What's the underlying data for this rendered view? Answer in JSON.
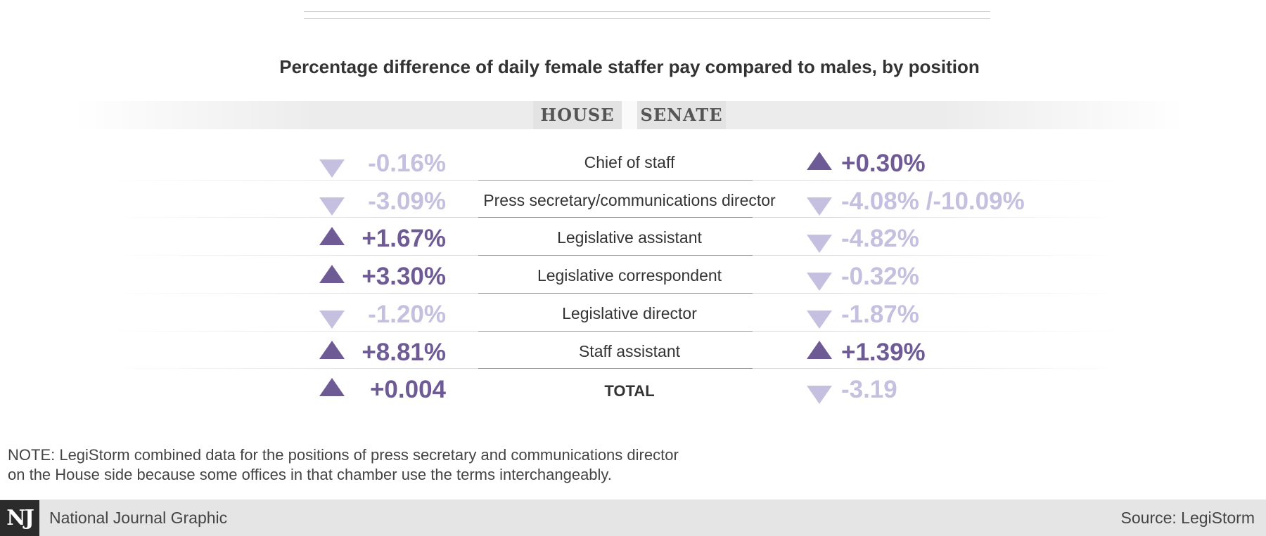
{
  "chart_data": {
    "type": "table",
    "title": "Percentage difference of daily female staffer pay compared to males, by position",
    "tabs": [
      "HOUSE",
      "SENATE"
    ],
    "rows": [
      {
        "position": "Chief of staff",
        "house": {
          "text": "-0.16%",
          "value": -0.16,
          "direction": "down"
        },
        "senate": {
          "text": "+0.30%",
          "value": 0.3,
          "direction": "up"
        }
      },
      {
        "position": "Press secretary/communications director",
        "house": {
          "text": "-3.09%",
          "value": -3.09,
          "direction": "down"
        },
        "senate": {
          "text": "-4.08% /-10.09%",
          "value": -4.08,
          "direction": "down"
        }
      },
      {
        "position": "Legislative assistant",
        "house": {
          "text": "+1.67%",
          "value": 1.67,
          "direction": "up"
        },
        "senate": {
          "text": "-4.82%",
          "value": -4.82,
          "direction": "down"
        }
      },
      {
        "position": "Legislative correspondent",
        "house": {
          "text": "+3.30%",
          "value": 3.3,
          "direction": "up"
        },
        "senate": {
          "text": "-0.32%",
          "value": -0.32,
          "direction": "down"
        }
      },
      {
        "position": "Legislative director",
        "house": {
          "text": "-1.20%",
          "value": -1.2,
          "direction": "down"
        },
        "senate": {
          "text": "-1.87%",
          "value": -1.87,
          "direction": "down"
        }
      },
      {
        "position": "Staff assistant",
        "house": {
          "text": "+8.81%",
          "value": 8.81,
          "direction": "up"
        },
        "senate": {
          "text": "+1.39%",
          "value": 1.39,
          "direction": "up"
        }
      },
      {
        "position": "TOTAL",
        "house": {
          "text": "+0.004",
          "value": 0.004,
          "direction": "up"
        },
        "senate": {
          "text": "-3.19",
          "value": -3.19,
          "direction": "down"
        }
      }
    ],
    "colors": {
      "up": "#6e5b95",
      "down": "#c5bfe0"
    }
  },
  "note": {
    "line1": "NOTE: LegiStorm combined data for the positions of press secretary and communications director",
    "line2": "on the House side because some offices in that chamber use the terms interchangeably."
  },
  "footer": {
    "logo": "NJ",
    "left": "National Journal Graphic",
    "right": "Source: LegiStorm"
  }
}
